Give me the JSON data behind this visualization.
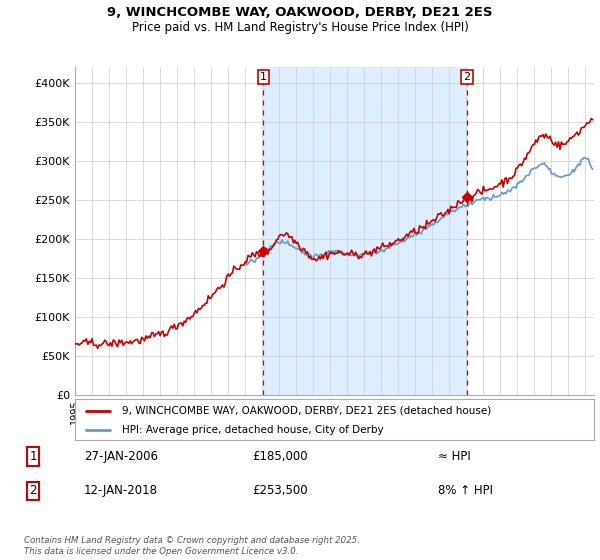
{
  "title_line1": "9, WINCHCOMBE WAY, OAKWOOD, DERBY, DE21 2ES",
  "title_line2": "Price paid vs. HM Land Registry's House Price Index (HPI)",
  "legend_label1": "9, WINCHCOMBE WAY, OAKWOOD, DERBY, DE21 2ES (detached house)",
  "legend_label2": "HPI: Average price, detached house, City of Derby",
  "footer": "Contains HM Land Registry data © Crown copyright and database right 2025.\nThis data is licensed under the Open Government Licence v3.0.",
  "annotation1_label": "1",
  "annotation1_date": "27-JAN-2006",
  "annotation1_price": "£185,000",
  "annotation1_hpi": "≈ HPI",
  "annotation2_label": "2",
  "annotation2_date": "12-JAN-2018",
  "annotation2_price": "£253,500",
  "annotation2_hpi": "8% ↑ HPI",
  "sale1_x": 2006.07,
  "sale1_y": 185000,
  "sale2_x": 2018.04,
  "sale2_y": 253500,
  "price_line_color": "#cc0000",
  "hpi_line_color": "#6699cc",
  "vline_color": "#cc0000",
  "shade_color": "#ddeeff",
  "ylim_min": 0,
  "ylim_max": 420000,
  "yticks": [
    0,
    50000,
    100000,
    150000,
    200000,
    250000,
    300000,
    350000,
    400000
  ],
  "xlim_min": 1995,
  "xlim_max": 2025.5
}
